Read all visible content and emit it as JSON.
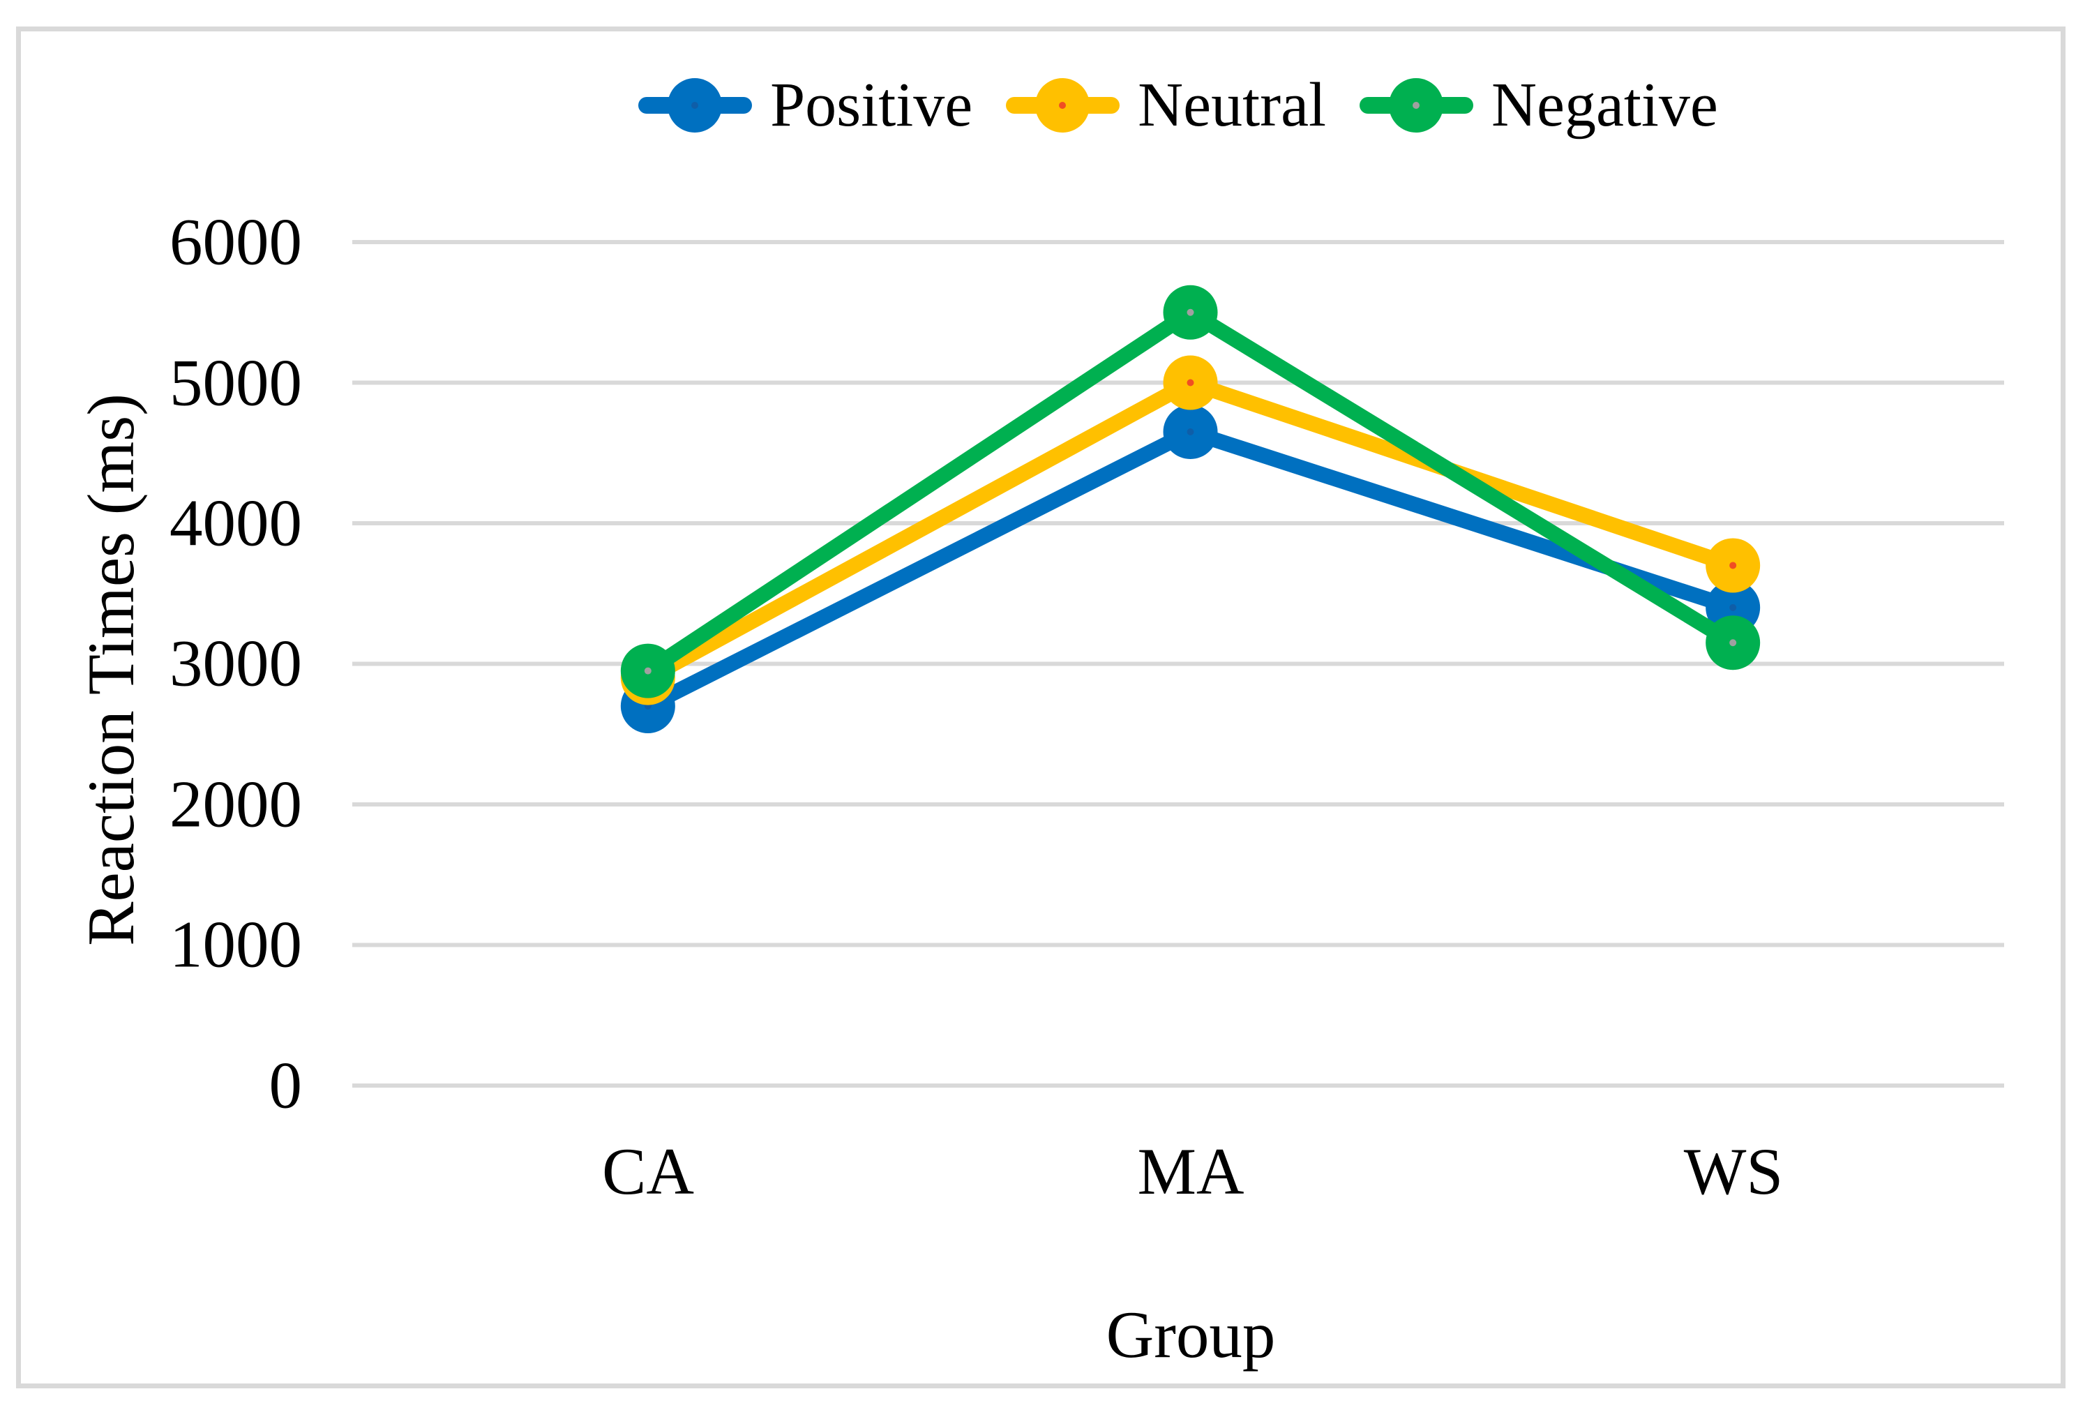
{
  "theme": {
    "background": "#FFFFFF",
    "border_color": "#D9D9D9",
    "gridline_color": "#D9D9D9",
    "text_color": "#000000"
  },
  "chart_data": {
    "type": "line",
    "title": "",
    "categories": [
      "CA",
      "MA",
      "WS"
    ],
    "series": [
      {
        "name": "Positive",
        "color": "#0070C0",
        "center_dot_color": "#0F5EA8",
        "values": [
          2700,
          4650,
          3400
        ]
      },
      {
        "name": "Neutral",
        "color": "#FFC000",
        "center_dot_color": "#F04E23",
        "values": [
          2900,
          5000,
          3700
        ]
      },
      {
        "name": "Negative",
        "color": "#00B050",
        "center_dot_color": "#A0A0A0",
        "values": [
          2950,
          5500,
          3150
        ]
      }
    ],
    "xlabel": "Group",
    "ylabel": "Reaction Times (ms)",
    "ylim": [
      0,
      6000
    ],
    "ytick_step": 1000,
    "ytick_labels": [
      "6000",
      "5000",
      "4000",
      "3000",
      "2000",
      "1000",
      "0"
    ],
    "grid": true,
    "legend_position": "top",
    "marker": "circle"
  }
}
